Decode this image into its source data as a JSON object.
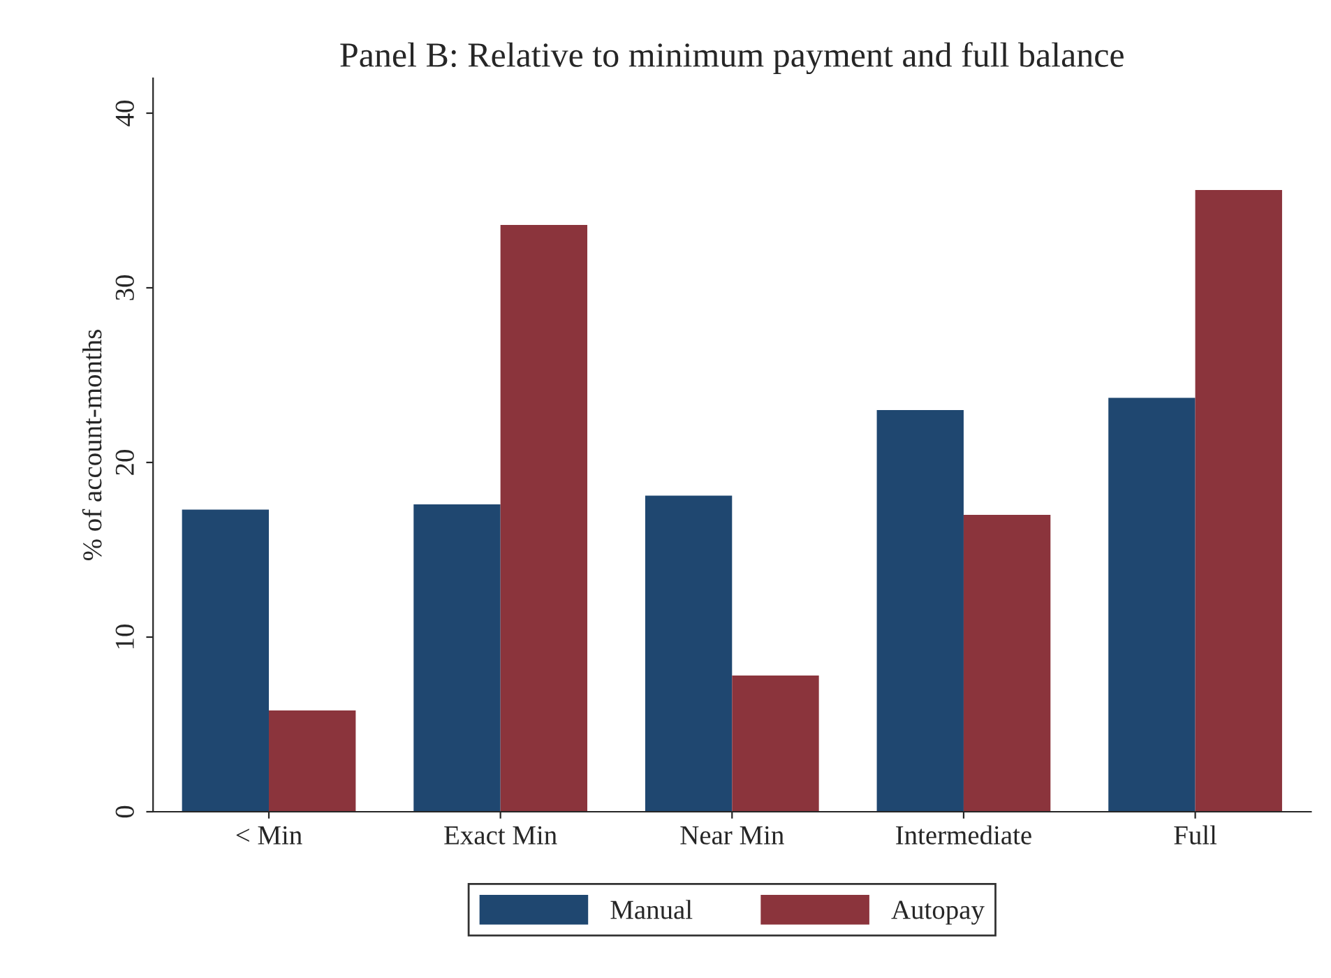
{
  "chart_data": {
    "type": "bar",
    "title": "Panel B: Relative to minimum payment and full balance",
    "ylabel": "% of account-months",
    "categories": [
      "< Min",
      "Exact Min",
      "Near Min",
      "Intermediate",
      "Full"
    ],
    "series": [
      {
        "name": "Manual",
        "color": "#1f4770",
        "values": [
          17.3,
          17.6,
          18.1,
          23.0,
          23.7
        ]
      },
      {
        "name": "Autopay",
        "color": "#8b343c",
        "values": [
          5.8,
          33.6,
          7.8,
          17.0,
          35.6
        ]
      }
    ],
    "ylim": [
      0,
      42
    ],
    "yticks": [
      0,
      10,
      20,
      30,
      40
    ],
    "grid": false,
    "legend": "bottom"
  }
}
